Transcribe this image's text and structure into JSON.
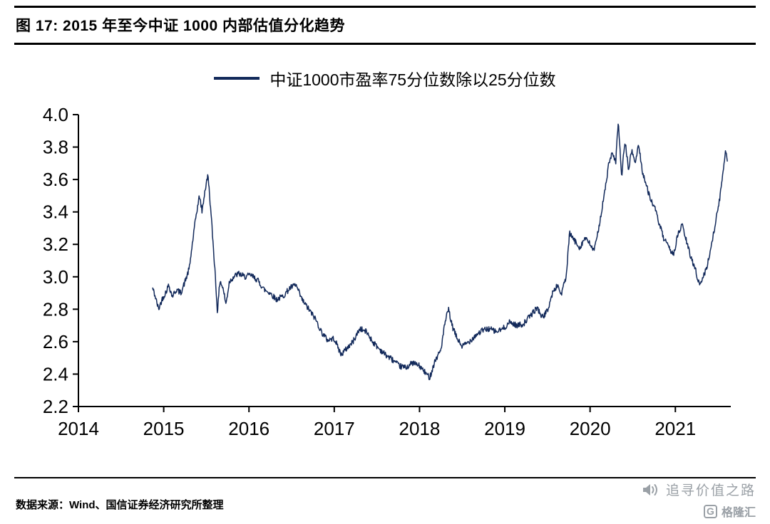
{
  "header": {
    "title": "图 17: 2015 年至今中证 1000 内部估值分化趋势"
  },
  "legend": {
    "label": "中证1000市盈率75分位数除以25分位数"
  },
  "footer": {
    "source": "数据来源：Wind、国信证券经济研究所整理"
  },
  "watermark": {
    "text": "追寻价值之路",
    "logo_letter": "G",
    "logo_text": "格隆汇"
  },
  "colors": {
    "line": "#12295a",
    "axis": "#000000",
    "watermark_gray": "#9aa0a6"
  },
  "chart_data": {
    "type": "line",
    "title": "2015 年至今中证 1000 内部估值分化趋势",
    "xlabel": "",
    "ylabel": "",
    "grid": false,
    "legend_position": "top",
    "xlim": [
      2014,
      2021.65
    ],
    "ylim": [
      2.2,
      4.0
    ],
    "x_ticks": [
      2014,
      2015,
      2016,
      2017,
      2018,
      2019,
      2020,
      2021
    ],
    "y_ticks": [
      2.2,
      2.4,
      2.6,
      2.8,
      3.0,
      3.2,
      3.4,
      3.6,
      3.8,
      4.0
    ],
    "noise_amplitude": 0.018,
    "series": [
      {
        "name": "中证1000市盈率75分位数除以25分位数",
        "color": "#12295a",
        "points": [
          [
            2014.87,
            2.93
          ],
          [
            2014.9,
            2.88
          ],
          [
            2014.94,
            2.8
          ],
          [
            2014.98,
            2.86
          ],
          [
            2015.02,
            2.9
          ],
          [
            2015.06,
            2.95
          ],
          [
            2015.1,
            2.88
          ],
          [
            2015.15,
            2.92
          ],
          [
            2015.2,
            2.9
          ],
          [
            2015.25,
            2.97
          ],
          [
            2015.3,
            3.05
          ],
          [
            2015.34,
            3.22
          ],
          [
            2015.38,
            3.38
          ],
          [
            2015.42,
            3.5
          ],
          [
            2015.45,
            3.4
          ],
          [
            2015.48,
            3.52
          ],
          [
            2015.52,
            3.63
          ],
          [
            2015.56,
            3.35
          ],
          [
            2015.6,
            3.05
          ],
          [
            2015.63,
            2.78
          ],
          [
            2015.66,
            2.98
          ],
          [
            2015.7,
            2.92
          ],
          [
            2015.73,
            2.83
          ],
          [
            2015.77,
            2.97
          ],
          [
            2015.82,
            3.0
          ],
          [
            2015.88,
            3.02
          ],
          [
            2015.95,
            3.0
          ],
          [
            2016.02,
            3.01
          ],
          [
            2016.1,
            2.98
          ],
          [
            2016.18,
            2.92
          ],
          [
            2016.25,
            2.9
          ],
          [
            2016.32,
            2.86
          ],
          [
            2016.4,
            2.88
          ],
          [
            2016.48,
            2.93
          ],
          [
            2016.55,
            2.95
          ],
          [
            2016.62,
            2.86
          ],
          [
            2016.7,
            2.8
          ],
          [
            2016.78,
            2.74
          ],
          [
            2016.85,
            2.66
          ],
          [
            2016.92,
            2.61
          ],
          [
            2017.0,
            2.62
          ],
          [
            2017.08,
            2.52
          ],
          [
            2017.15,
            2.56
          ],
          [
            2017.22,
            2.6
          ],
          [
            2017.3,
            2.68
          ],
          [
            2017.38,
            2.66
          ],
          [
            2017.45,
            2.6
          ],
          [
            2017.52,
            2.56
          ],
          [
            2017.6,
            2.52
          ],
          [
            2017.68,
            2.49
          ],
          [
            2017.76,
            2.45
          ],
          [
            2017.84,
            2.44
          ],
          [
            2017.92,
            2.47
          ],
          [
            2018.0,
            2.45
          ],
          [
            2018.08,
            2.4
          ],
          [
            2018.12,
            2.38
          ],
          [
            2018.18,
            2.48
          ],
          [
            2018.25,
            2.55
          ],
          [
            2018.3,
            2.72
          ],
          [
            2018.34,
            2.8
          ],
          [
            2018.38,
            2.7
          ],
          [
            2018.44,
            2.62
          ],
          [
            2018.5,
            2.57
          ],
          [
            2018.58,
            2.6
          ],
          [
            2018.66,
            2.64
          ],
          [
            2018.74,
            2.67
          ],
          [
            2018.82,
            2.68
          ],
          [
            2018.9,
            2.66
          ],
          [
            2018.98,
            2.68
          ],
          [
            2019.06,
            2.72
          ],
          [
            2019.14,
            2.7
          ],
          [
            2019.22,
            2.71
          ],
          [
            2019.3,
            2.76
          ],
          [
            2019.38,
            2.81
          ],
          [
            2019.44,
            2.75
          ],
          [
            2019.5,
            2.79
          ],
          [
            2019.56,
            2.9
          ],
          [
            2019.62,
            2.95
          ],
          [
            2019.66,
            2.89
          ],
          [
            2019.72,
            3.0
          ],
          [
            2019.76,
            3.27
          ],
          [
            2019.82,
            3.22
          ],
          [
            2019.88,
            3.18
          ],
          [
            2019.94,
            3.24
          ],
          [
            2020.0,
            3.2
          ],
          [
            2020.05,
            3.16
          ],
          [
            2020.1,
            3.3
          ],
          [
            2020.16,
            3.48
          ],
          [
            2020.22,
            3.7
          ],
          [
            2020.26,
            3.76
          ],
          [
            2020.3,
            3.7
          ],
          [
            2020.33,
            3.96
          ],
          [
            2020.37,
            3.62
          ],
          [
            2020.41,
            3.84
          ],
          [
            2020.45,
            3.66
          ],
          [
            2020.49,
            3.78
          ],
          [
            2020.53,
            3.7
          ],
          [
            2020.57,
            3.82
          ],
          [
            2020.61,
            3.66
          ],
          [
            2020.66,
            3.56
          ],
          [
            2020.71,
            3.48
          ],
          [
            2020.76,
            3.42
          ],
          [
            2020.81,
            3.33
          ],
          [
            2020.86,
            3.24
          ],
          [
            2020.92,
            3.18
          ],
          [
            2020.98,
            3.14
          ],
          [
            2021.03,
            3.26
          ],
          [
            2021.08,
            3.32
          ],
          [
            2021.13,
            3.22
          ],
          [
            2021.18,
            3.12
          ],
          [
            2021.23,
            3.06
          ],
          [
            2021.28,
            2.95
          ],
          [
            2021.33,
            3.0
          ],
          [
            2021.38,
            3.08
          ],
          [
            2021.43,
            3.22
          ],
          [
            2021.48,
            3.36
          ],
          [
            2021.52,
            3.48
          ],
          [
            2021.56,
            3.65
          ],
          [
            2021.59,
            3.79
          ],
          [
            2021.61,
            3.72
          ]
        ]
      }
    ]
  }
}
